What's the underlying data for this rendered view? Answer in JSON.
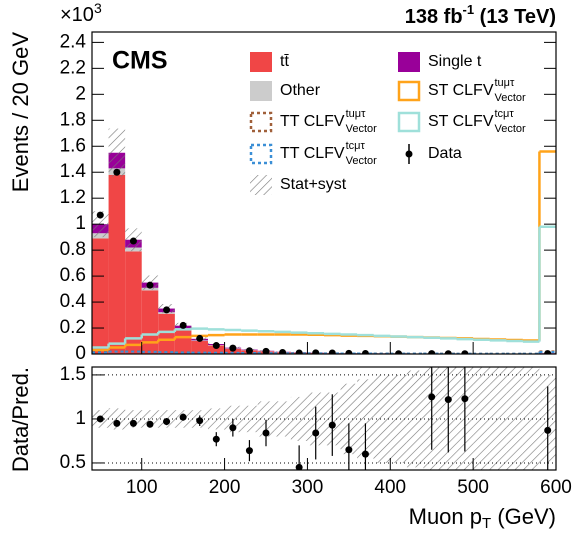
{
  "chart_data": [
    {
      "type": "stacked-histogram",
      "experiment_label": "CMS",
      "lumi_label": {
        "text": "138 fb",
        "sup": "-1",
        "suffix": "(13 TeV)"
      },
      "ylabel": "Events / 20 GeV",
      "y_multiplier": {
        "base": "×10",
        "exp": "3"
      },
      "bins": [
        40,
        60,
        80,
        100,
        120,
        140,
        160,
        180,
        200,
        220,
        240,
        260,
        280,
        300,
        320,
        340,
        360,
        380,
        400,
        420,
        440,
        460,
        480,
        500,
        520,
        540,
        560,
        580,
        600
      ],
      "xlim": [
        40,
        600
      ],
      "ylim": [
        0,
        2.48
      ],
      "yticks": [
        0,
        0.2,
        0.4,
        0.6,
        0.8,
        1,
        1.2,
        1.4,
        1.6,
        1.8,
        2,
        2.2,
        2.4
      ],
      "series": [
        {
          "name": "tt̄",
          "color": "#f04646",
          "values": [
            0.89,
            1.38,
            0.79,
            0.49,
            0.31,
            0.19,
            0.1,
            0.065,
            0.04,
            0.028,
            0.02,
            0.014,
            0.01,
            0.008,
            0.006,
            0.005,
            0.004,
            0.003,
            0.003,
            0.002,
            0.002,
            0.002,
            0.001,
            0.001,
            0.001,
            0.001,
            0.001,
            0.004
          ]
        },
        {
          "name": "Other",
          "color": "#cccccc",
          "values": [
            0.04,
            0.05,
            0.03,
            0.02,
            0.012,
            0.008,
            0.005,
            0.004,
            0.003,
            0.002,
            0.002,
            0.001,
            0.001,
            0.001,
            0.001,
            0.001,
            0.001,
            0.001,
            0.001,
            0.001,
            0.001,
            0.001,
            0.001,
            0.001,
            0.001,
            0.001,
            0.001,
            0.002
          ]
        },
        {
          "name": "Single t",
          "color": "#990099",
          "values": [
            0.07,
            0.12,
            0.06,
            0.04,
            0.028,
            0.02,
            0.012,
            0.008,
            0.006,
            0.004,
            0.003,
            0.002,
            0.002,
            0.002,
            0.001,
            0.001,
            0.001,
            0.001,
            0.001,
            0.001,
            0.001,
            0.001,
            0.001,
            0.001,
            0.001,
            0.001,
            0.001,
            0.002
          ]
        }
      ],
      "signals": [
        {
          "name": "ST CLFV",
          "sup": "tuμτ",
          "sub": "Vector",
          "color": "#ffa31a",
          "dashed": false,
          "values": [
            0.03,
            0.05,
            0.07,
            0.09,
            0.11,
            0.13,
            0.14,
            0.145,
            0.15,
            0.15,
            0.15,
            0.15,
            0.15,
            0.148,
            0.145,
            0.142,
            0.14,
            0.137,
            0.134,
            0.13,
            0.127,
            0.123,
            0.12,
            0.116,
            0.112,
            0.108,
            0.104,
            1.56
          ]
        },
        {
          "name": "ST CLFV",
          "sup": "tcμτ",
          "sub": "Vector",
          "color": "#9fe0da",
          "dashed": false,
          "values": [
            0.05,
            0.08,
            0.12,
            0.15,
            0.17,
            0.19,
            0.195,
            0.19,
            0.185,
            0.18,
            0.175,
            0.17,
            0.165,
            0.16,
            0.155,
            0.15,
            0.145,
            0.14,
            0.135,
            0.13,
            0.125,
            0.12,
            0.115,
            0.11,
            0.105,
            0.1,
            0.095,
            0.98
          ]
        },
        {
          "name": "TT CLFV",
          "sup": "tuμτ",
          "sub": "Vector",
          "color": "#a0603a",
          "dashed": true,
          "values": [
            0.015,
            0.02,
            0.02,
            0.018,
            0.015,
            0.013,
            0.012,
            0.01,
            0.009,
            0.008,
            0.007,
            0.006,
            0.006,
            0.005,
            0.005,
            0.004,
            0.004,
            0.004,
            0.003,
            0.003,
            0.003,
            0.003,
            0.002,
            0.002,
            0.002,
            0.002,
            0.002,
            0.02
          ]
        },
        {
          "name": "TT CLFV",
          "sup": "tcμτ",
          "sub": "Vector",
          "color": "#3b8fd6",
          "dashed": true,
          "values": [
            0.012,
            0.018,
            0.018,
            0.016,
            0.014,
            0.012,
            0.011,
            0.01,
            0.009,
            0.008,
            0.007,
            0.006,
            0.005,
            0.005,
            0.004,
            0.004,
            0.004,
            0.003,
            0.003,
            0.003,
            0.003,
            0.002,
            0.002,
            0.002,
            0.002,
            0.002,
            0.002,
            0.015
          ]
        }
      ],
      "data": {
        "name": "Data",
        "color": "#000000",
        "values": [
          1.07,
          1.4,
          0.87,
          0.53,
          0.34,
          0.22,
          0.12,
          0.065,
          0.045,
          0.025,
          0.02,
          0.012,
          0.008,
          0.009,
          0.008,
          0.005,
          0.004,
          null,
          0.002,
          null,
          0.003,
          0.002,
          0.002,
          null,
          null,
          null,
          null,
          0.003
        ]
      },
      "uncertainty": {
        "name": "Stat+syst",
        "values": [
          0.1,
          0.12,
          0.1,
          0.1,
          0.1,
          0.1,
          0.1,
          0.12,
          0.15,
          0.15,
          0.2,
          0.2,
          0.25,
          0.3,
          0.3,
          0.4,
          0.45,
          0.5,
          0.5,
          0.55,
          0.6,
          0.6,
          0.6,
          0.6,
          0.6,
          0.6,
          0.6,
          0.5
        ]
      }
    },
    {
      "type": "ratio",
      "ylabel": "Data/Pred.",
      "xlabel": {
        "text": "Muon p",
        "sub": "T",
        "suffix": "(GeV)"
      },
      "xlim": [
        40,
        600
      ],
      "xticks": [
        100,
        200,
        300,
        400,
        500,
        600
      ],
      "ylim": [
        0.42,
        1.59
      ],
      "yticks": [
        0.5,
        1,
        1.5
      ],
      "grid": true,
      "x": [
        50,
        70,
        90,
        110,
        130,
        150,
        170,
        190,
        210,
        230,
        250,
        270,
        290,
        310,
        330,
        350,
        370,
        390,
        410,
        430,
        450,
        470,
        490,
        510,
        530,
        550,
        570,
        590
      ],
      "values": [
        1.0,
        0.95,
        0.95,
        0.94,
        0.97,
        1.02,
        0.98,
        0.77,
        0.9,
        0.64,
        0.84,
        null,
        0.45,
        0.84,
        0.93,
        0.65,
        0.6,
        null,
        null,
        null,
        1.25,
        1.22,
        1.23,
        null,
        null,
        null,
        null,
        0.87
      ],
      "errors": [
        0.02,
        0.02,
        0.03,
        0.03,
        0.04,
        0.04,
        0.06,
        0.08,
        0.1,
        0.12,
        0.15,
        null,
        0.25,
        0.3,
        0.35,
        0.3,
        0.35,
        null,
        null,
        null,
        0.6,
        0.6,
        0.6,
        null,
        null,
        null,
        null,
        0.5
      ],
      "band": [
        0.1,
        0.12,
        0.1,
        0.1,
        0.1,
        0.1,
        0.1,
        0.12,
        0.15,
        0.15,
        0.2,
        0.2,
        0.25,
        0.3,
        0.3,
        0.4,
        0.45,
        0.5,
        0.5,
        0.55,
        0.6,
        0.6,
        0.6,
        0.6,
        0.6,
        0.6,
        0.6,
        0.5
      ]
    }
  ]
}
